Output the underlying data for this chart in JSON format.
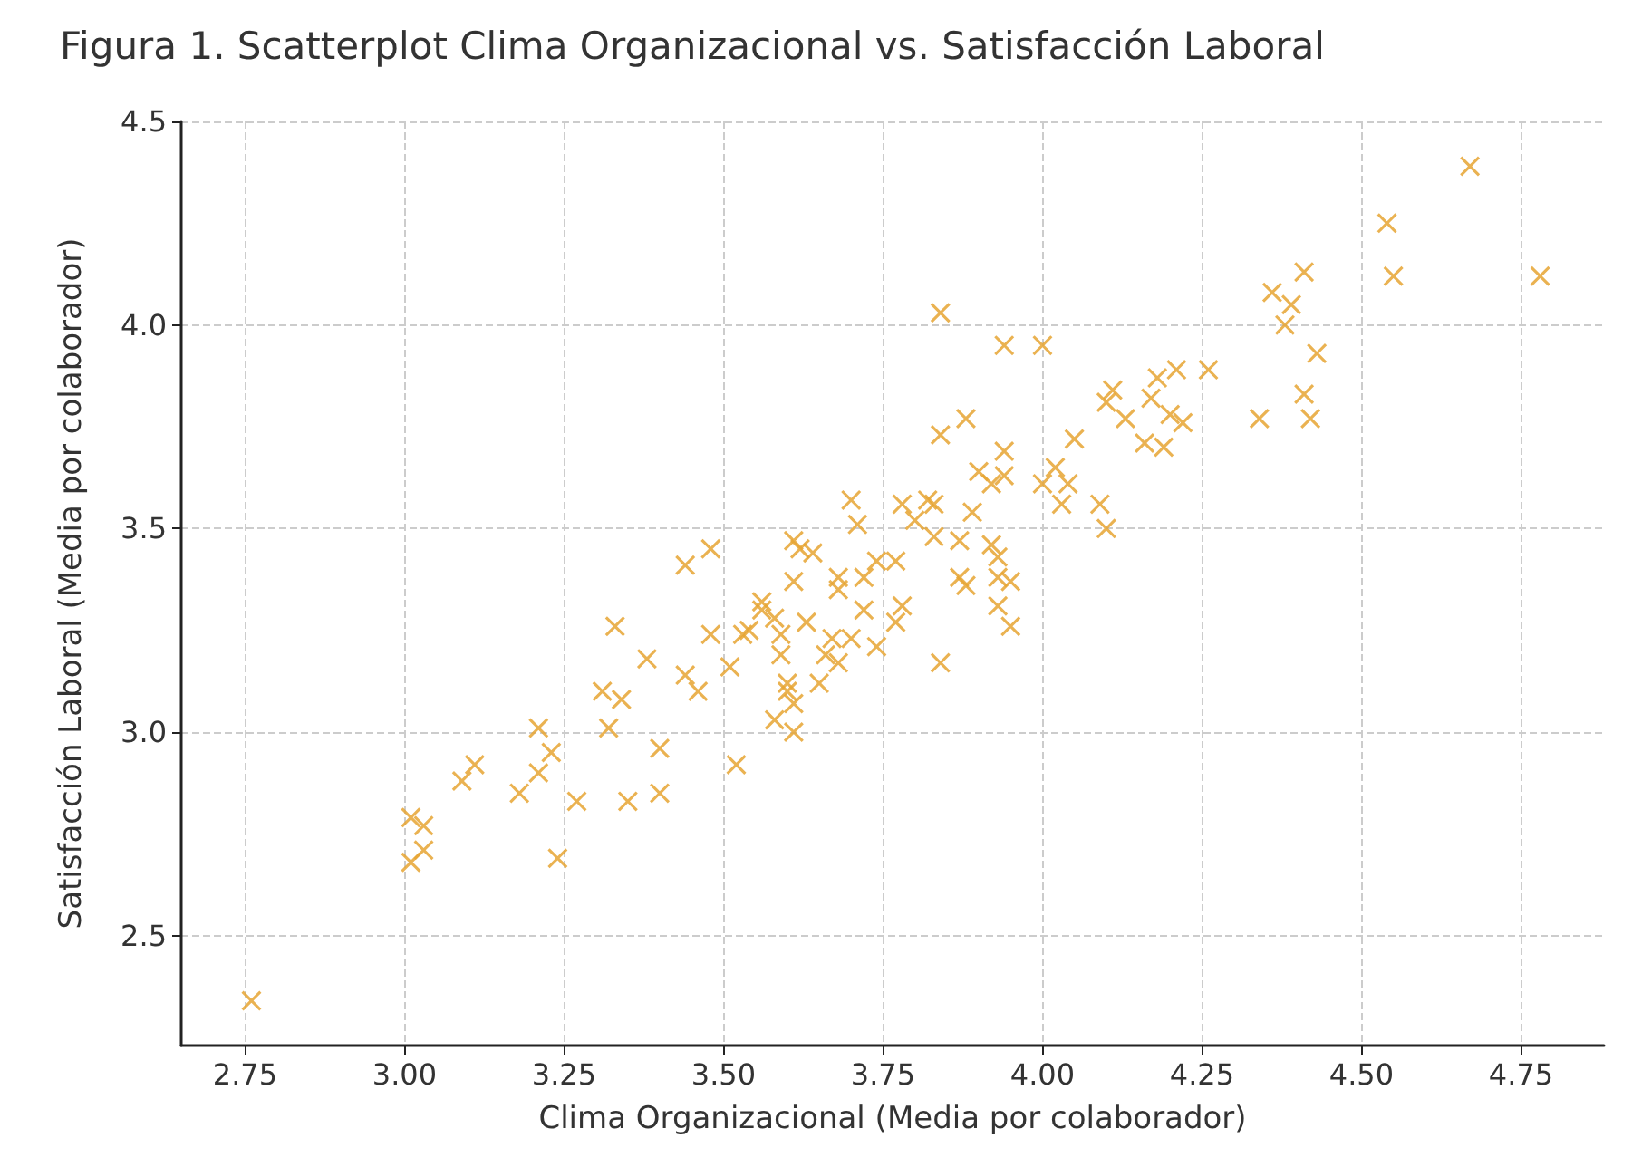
{
  "chart_data": {
    "type": "scatter",
    "title": "Figura 1. Scatterplot Clima Organizacional vs. Satisfacción Laboral",
    "xlabel": "Clima Organizacional (Media por colaborador)",
    "ylabel": "Satisfacción Laboral (Media por colaborador)",
    "xlim": [
      2.65,
      4.88
    ],
    "ylim": [
      2.23,
      4.5
    ],
    "xticks": [
      {
        "value": 2.75,
        "label": "2.75"
      },
      {
        "value": 3,
        "label": "3.00"
      },
      {
        "value": 3.25,
        "label": "3.25"
      },
      {
        "value": 3.5,
        "label": "3.50"
      },
      {
        "value": 3.75,
        "label": "3.75"
      },
      {
        "value": 4,
        "label": "4.00"
      },
      {
        "value": 4.25,
        "label": "4.25"
      },
      {
        "value": 4.5,
        "label": "4.50"
      },
      {
        "value": 4.75,
        "label": "4.75"
      }
    ],
    "yticks": [
      {
        "value": 2.5,
        "label": "2.5"
      },
      {
        "value": 3,
        "label": "3.0"
      },
      {
        "value": 3.5,
        "label": "3.5"
      },
      {
        "value": 4,
        "label": "4.0"
      },
      {
        "value": 4.5,
        "label": "4.5"
      }
    ],
    "grid": true,
    "marker": "cross",
    "series": [
      {
        "color": "#e6a532",
        "x": [
          2.76,
          3.01,
          3.03,
          3.03,
          3.01,
          3.09,
          3.11,
          3.18,
          3.21,
          3.21,
          3.23,
          3.24,
          3.27,
          3.32,
          3.35,
          3.4,
          3.4,
          3.31,
          3.34,
          3.46,
          3.44,
          3.48,
          3.33,
          3.48,
          3.38,
          3.44,
          3.51,
          3.53,
          3.54,
          3.56,
          3.56,
          3.58,
          3.59,
          3.63,
          3.59,
          3.67,
          3.66,
          3.68,
          3.7,
          3.74,
          3.65,
          3.6,
          3.6,
          3.58,
          3.61,
          3.61,
          3.52,
          3.61,
          3.62,
          3.64,
          3.61,
          3.68,
          3.68,
          3.72,
          3.74,
          3.77,
          3.72,
          3.78,
          3.77,
          3.87,
          3.88,
          3.93,
          3.95,
          3.93,
          3.95,
          3.84,
          3.7,
          3.71,
          3.78,
          3.82,
          3.83,
          3.8,
          3.83,
          3.89,
          3.87,
          3.92,
          3.93,
          3.84,
          3.94,
          4.0,
          3.88,
          3.84,
          3.94,
          3.9,
          3.92,
          3.94,
          4.0,
          4.02,
          4.04,
          4.03,
          4.09,
          4.1,
          4.05,
          4.11,
          4.13,
          4.1,
          4.17,
          4.18,
          4.21,
          4.26,
          4.2,
          4.22,
          4.16,
          4.19,
          4.67,
          4.54,
          4.55,
          4.78,
          4.41,
          4.36,
          4.39,
          4.38,
          4.43,
          4.41,
          4.34,
          4.42
        ],
        "values": [
          2.34,
          2.79,
          2.77,
          2.71,
          2.68,
          2.88,
          2.92,
          2.85,
          3.01,
          2.9,
          2.95,
          2.69,
          2.83,
          3.01,
          2.83,
          2.85,
          2.96,
          3.1,
          3.08,
          3.1,
          3.41,
          3.45,
          3.26,
          3.24,
          3.18,
          3.14,
          3.16,
          3.24,
          3.25,
          3.32,
          3.3,
          3.28,
          3.24,
          3.27,
          3.19,
          3.23,
          3.19,
          3.17,
          3.23,
          3.21,
          3.12,
          3.12,
          3.1,
          3.03,
          3.0,
          3.07,
          2.92,
          3.47,
          3.45,
          3.44,
          3.37,
          3.38,
          3.35,
          3.38,
          3.42,
          3.42,
          3.3,
          3.31,
          3.27,
          3.38,
          3.36,
          3.38,
          3.37,
          3.31,
          3.26,
          3.17,
          3.57,
          3.51,
          3.56,
          3.57,
          3.56,
          3.52,
          3.48,
          3.54,
          3.47,
          3.46,
          3.43,
          4.03,
          3.95,
          3.95,
          3.77,
          3.73,
          3.69,
          3.64,
          3.61,
          3.63,
          3.61,
          3.65,
          3.61,
          3.56,
          3.56,
          3.5,
          3.72,
          3.84,
          3.77,
          3.81,
          3.82,
          3.87,
          3.89,
          3.89,
          3.78,
          3.76,
          3.71,
          3.7,
          4.39,
          4.25,
          4.12,
          4.12,
          4.13,
          4.08,
          4.05,
          4.0,
          3.93,
          3.83,
          3.77,
          3.77
        ]
      }
    ]
  }
}
